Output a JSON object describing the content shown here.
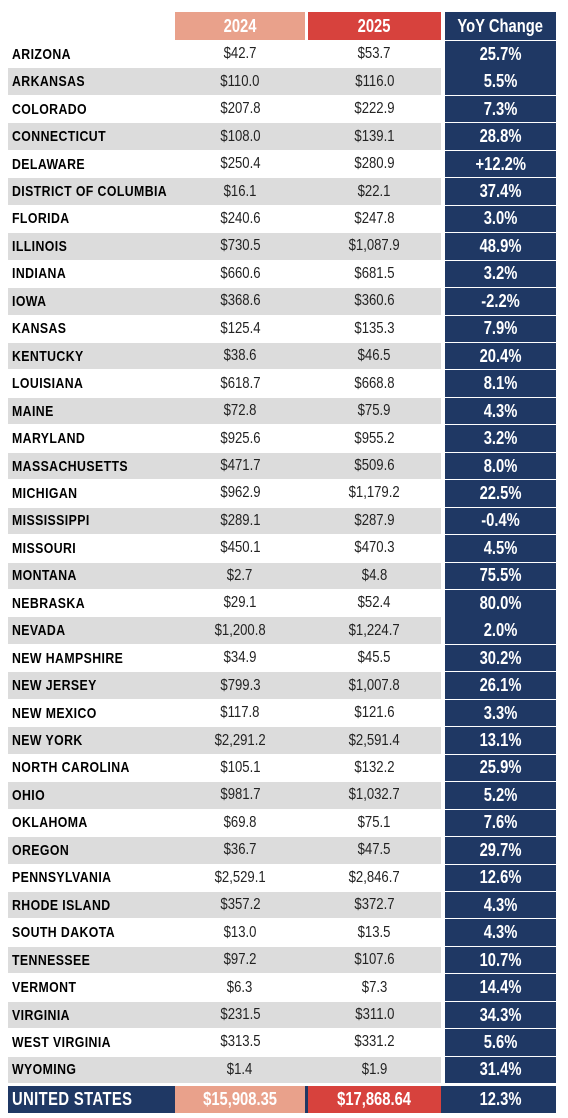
{
  "table": {
    "header": [
      "2024",
      "2025",
      "YoY Change"
    ],
    "rows": [
      [
        "ARIZONA",
        "$42.7",
        "$53.7",
        "25.7%"
      ],
      [
        "ARKANSAS",
        "$110.0",
        "$116.0",
        "5.5%"
      ],
      [
        "COLORADO",
        "$207.8",
        "$222.9",
        "7.3%"
      ],
      [
        "CONNECTICUT",
        "$108.0",
        "$139.1",
        "28.8%"
      ],
      [
        "DELAWARE",
        "$250.4",
        "$280.9",
        "+12.2%"
      ],
      [
        "DISTRICT OF COLUMBIA",
        "$16.1",
        "$22.1",
        "37.4%"
      ],
      [
        "FLORIDA",
        "$240.6",
        "$247.8",
        "3.0%"
      ],
      [
        "ILLINOIS",
        "$730.5",
        "$1,087.9",
        "48.9%"
      ],
      [
        "INDIANA",
        "$660.6",
        "$681.5",
        "3.2%"
      ],
      [
        "IOWA",
        "$368.6",
        "$360.6",
        "-2.2%"
      ],
      [
        "KANSAS",
        "$125.4",
        "$135.3",
        "7.9%"
      ],
      [
        "KENTUCKY",
        "$38.6",
        "$46.5",
        "20.4%"
      ],
      [
        "LOUISIANA",
        "$618.7",
        "$668.8",
        "8.1%"
      ],
      [
        "MAINE",
        "$72.8",
        "$75.9",
        "4.3%"
      ],
      [
        "MARYLAND",
        "$925.6",
        "$955.2",
        "3.2%"
      ],
      [
        "MASSACHUSETTS",
        "$471.7",
        "$509.6",
        "8.0%"
      ],
      [
        "MICHIGAN",
        "$962.9",
        "$1,179.2",
        "22.5%"
      ],
      [
        "MISSISSIPPI",
        "$289.1",
        "$287.9",
        "-0.4%"
      ],
      [
        "MISSOURI",
        "$450.1",
        "$470.3",
        "4.5%"
      ],
      [
        "MONTANA",
        "$2.7",
        "$4.8",
        "75.5%"
      ],
      [
        "NEBRASKA",
        "$29.1",
        "$52.4",
        "80.0%"
      ],
      [
        "NEVADA",
        "$1,200.8",
        "$1,224.7",
        "2.0%"
      ],
      [
        "NEW HAMPSHIRE",
        "$34.9",
        "$45.5",
        "30.2%"
      ],
      [
        "NEW JERSEY",
        "$799.3",
        "$1,007.8",
        "26.1%"
      ],
      [
        "NEW MEXICO",
        "$117.8",
        "$121.6",
        "3.3%"
      ],
      [
        "NEW YORK",
        "$2,291.2",
        "$2,591.4",
        "13.1%"
      ],
      [
        "NORTH CAROLINA",
        "$105.1",
        "$132.2",
        "25.9%"
      ],
      [
        "OHIO",
        "$981.7",
        "$1,032.7",
        "5.2%"
      ],
      [
        "OKLAHOMA",
        "$69.8",
        "$75.1",
        "7.6%"
      ],
      [
        "OREGON",
        "$36.7",
        "$47.5",
        "29.7%"
      ],
      [
        "PENNSYLVANIA",
        "$2,529.1",
        "$2,846.7",
        "12.6%"
      ],
      [
        "RHODE ISLAND",
        "$357.2",
        "$372.7",
        "4.3%"
      ],
      [
        "SOUTH DAKOTA",
        "$13.0",
        "$13.5",
        "4.3%"
      ],
      [
        "TENNESSEE",
        "$97.2",
        "$107.6",
        "10.7%"
      ],
      [
        "VERMONT",
        "$6.3",
        "$7.3",
        "14.4%"
      ],
      [
        "VIRGINIA",
        "$231.5",
        "$311.0",
        "34.3%"
      ],
      [
        "WEST VIRGINIA",
        "$313.5",
        "$331.2",
        "5.6%"
      ],
      [
        "WYOMING",
        "$1.4",
        "$1.9",
        "31.4%"
      ]
    ],
    "total": [
      "UNITED STATES",
      "$15,908.35",
      "$17,868.64",
      "12.3%"
    ]
  }
}
